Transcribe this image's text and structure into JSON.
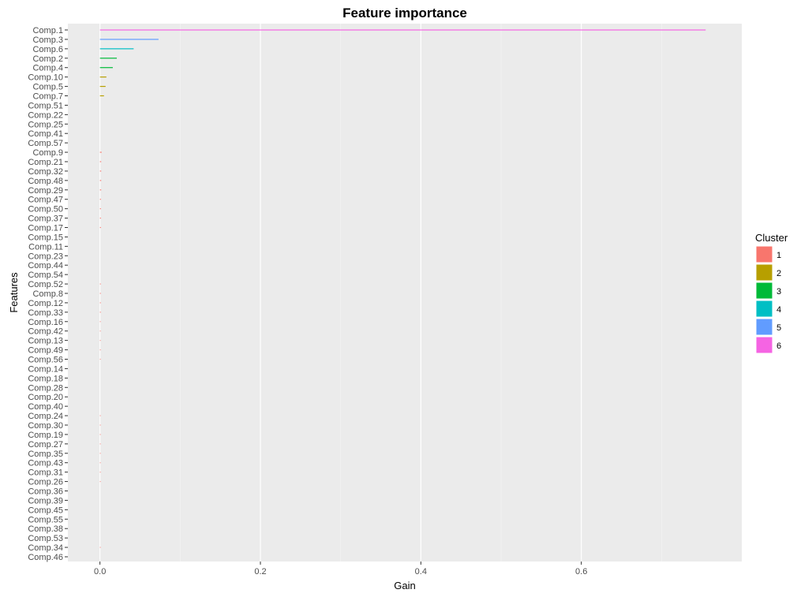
{
  "chart_data": {
    "type": "bar",
    "orientation": "horizontal",
    "title": "Feature importance",
    "xlabel": "Gain",
    "ylabel": "Features",
    "xlim": [
      -0.04,
      0.8
    ],
    "x_ticks": [
      0.0,
      0.2,
      0.4,
      0.6
    ],
    "x_tick_labels": [
      "0.0",
      "0.2",
      "0.4",
      "0.6"
    ],
    "grid": true,
    "legend_position": "right",
    "legend_title": "Cluster",
    "clusters": [
      {
        "label": "1",
        "color": "#F8766D"
      },
      {
        "label": "2",
        "color": "#B79F00"
      },
      {
        "label": "3",
        "color": "#00BA38"
      },
      {
        "label": "4",
        "color": "#00BFC4"
      },
      {
        "label": "5",
        "color": "#619CFF"
      },
      {
        "label": "6",
        "color": "#F564E3"
      }
    ],
    "bars": [
      {
        "feature": "Comp.1",
        "gain": 0.755,
        "cluster": 6
      },
      {
        "feature": "Comp.3",
        "gain": 0.073,
        "cluster": 5
      },
      {
        "feature": "Comp.6",
        "gain": 0.042,
        "cluster": 4
      },
      {
        "feature": "Comp.2",
        "gain": 0.021,
        "cluster": 3
      },
      {
        "feature": "Comp.4",
        "gain": 0.016,
        "cluster": 3
      },
      {
        "feature": "Comp.10",
        "gain": 0.008,
        "cluster": 2
      },
      {
        "feature": "Comp.5",
        "gain": 0.007,
        "cluster": 2
      },
      {
        "feature": "Comp.7",
        "gain": 0.005,
        "cluster": 2
      },
      {
        "feature": "Comp.51",
        "gain": 0.0,
        "cluster": 2
      },
      {
        "feature": "Comp.22",
        "gain": 0.0,
        "cluster": 2
      },
      {
        "feature": "Comp.25",
        "gain": 0.0,
        "cluster": 2
      },
      {
        "feature": "Comp.41",
        "gain": 0.0,
        "cluster": 2
      },
      {
        "feature": "Comp.57",
        "gain": 0.0,
        "cluster": 2
      },
      {
        "feature": "Comp.9",
        "gain": 0.002,
        "cluster": 1
      },
      {
        "feature": "Comp.21",
        "gain": 0.0015,
        "cluster": 1
      },
      {
        "feature": "Comp.32",
        "gain": 0.0015,
        "cluster": 1
      },
      {
        "feature": "Comp.48",
        "gain": 0.0015,
        "cluster": 1
      },
      {
        "feature": "Comp.29",
        "gain": 0.0015,
        "cluster": 1
      },
      {
        "feature": "Comp.47",
        "gain": 0.0012,
        "cluster": 1
      },
      {
        "feature": "Comp.50",
        "gain": 0.0012,
        "cluster": 1
      },
      {
        "feature": "Comp.37",
        "gain": 0.0012,
        "cluster": 1
      },
      {
        "feature": "Comp.17",
        "gain": 0.0012,
        "cluster": 1
      },
      {
        "feature": "Comp.15",
        "gain": 0.0,
        "cluster": 1
      },
      {
        "feature": "Comp.11",
        "gain": 0.0,
        "cluster": 1
      },
      {
        "feature": "Comp.23",
        "gain": 0.0,
        "cluster": 1
      },
      {
        "feature": "Comp.44",
        "gain": 0.0,
        "cluster": 1
      },
      {
        "feature": "Comp.54",
        "gain": 0.0,
        "cluster": 1
      },
      {
        "feature": "Comp.52",
        "gain": 0.001,
        "cluster": 1
      },
      {
        "feature": "Comp.8",
        "gain": 0.001,
        "cluster": 1
      },
      {
        "feature": "Comp.12",
        "gain": 0.001,
        "cluster": 1
      },
      {
        "feature": "Comp.33",
        "gain": 0.001,
        "cluster": 1
      },
      {
        "feature": "Comp.16",
        "gain": 0.0008,
        "cluster": 1
      },
      {
        "feature": "Comp.42",
        "gain": 0.0008,
        "cluster": 1
      },
      {
        "feature": "Comp.13",
        "gain": 0.0008,
        "cluster": 1
      },
      {
        "feature": "Comp.49",
        "gain": 0.0008,
        "cluster": 1
      },
      {
        "feature": "Comp.56",
        "gain": 0.0008,
        "cluster": 1
      },
      {
        "feature": "Comp.14",
        "gain": 0.0,
        "cluster": 1
      },
      {
        "feature": "Comp.18",
        "gain": 0.0,
        "cluster": 1
      },
      {
        "feature": "Comp.28",
        "gain": 0.0,
        "cluster": 1
      },
      {
        "feature": "Comp.20",
        "gain": 0.0,
        "cluster": 1
      },
      {
        "feature": "Comp.40",
        "gain": 0.0,
        "cluster": 1
      },
      {
        "feature": "Comp.24",
        "gain": 0.0006,
        "cluster": 1
      },
      {
        "feature": "Comp.30",
        "gain": 0.0006,
        "cluster": 1
      },
      {
        "feature": "Comp.19",
        "gain": 0.0006,
        "cluster": 1
      },
      {
        "feature": "Comp.27",
        "gain": 0.0006,
        "cluster": 1
      },
      {
        "feature": "Comp.35",
        "gain": 0.0006,
        "cluster": 1
      },
      {
        "feature": "Comp.43",
        "gain": 0.0006,
        "cluster": 1
      },
      {
        "feature": "Comp.31",
        "gain": 0.0006,
        "cluster": 1
      },
      {
        "feature": "Comp.26",
        "gain": 0.0006,
        "cluster": 1
      },
      {
        "feature": "Comp.36",
        "gain": 0.0,
        "cluster": 1
      },
      {
        "feature": "Comp.39",
        "gain": 0.0,
        "cluster": 1
      },
      {
        "feature": "Comp.45",
        "gain": 0.0,
        "cluster": 1
      },
      {
        "feature": "Comp.55",
        "gain": 0.0,
        "cluster": 1
      },
      {
        "feature": "Comp.38",
        "gain": 0.0,
        "cluster": 1
      },
      {
        "feature": "Comp.53",
        "gain": 0.0,
        "cluster": 1
      },
      {
        "feature": "Comp.34",
        "gain": 0.0005,
        "cluster": 1
      },
      {
        "feature": "Comp.46",
        "gain": 0.0,
        "cluster": 1
      }
    ]
  }
}
